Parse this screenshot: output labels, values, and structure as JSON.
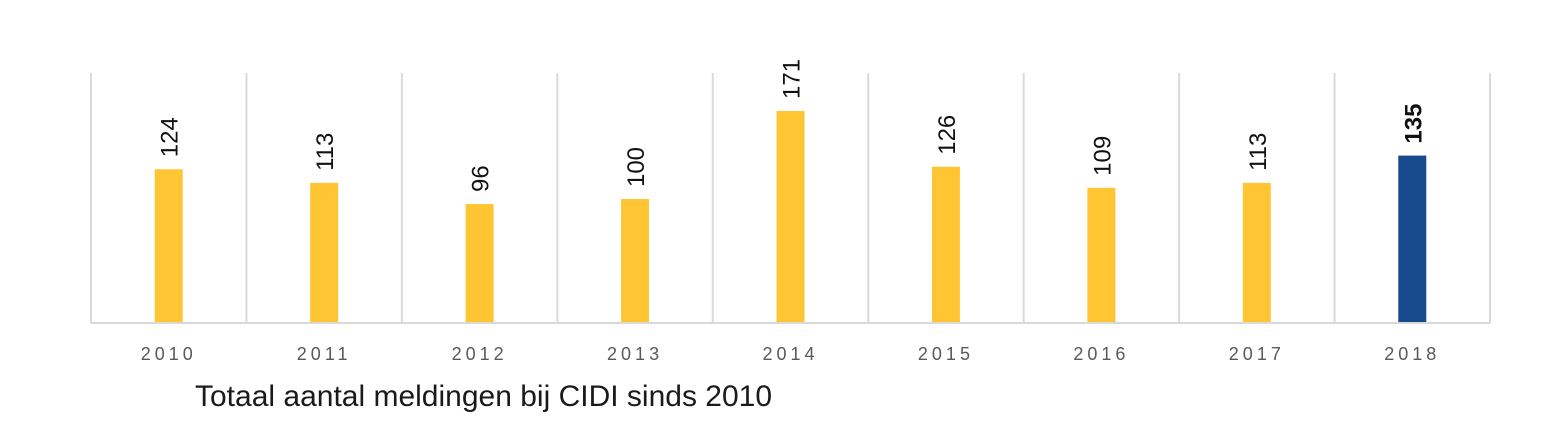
{
  "chart_data": {
    "type": "bar",
    "categories": [
      "2010",
      "2011",
      "2012",
      "2013",
      "2014",
      "2015",
      "2016",
      "2017",
      "2018"
    ],
    "values": [
      124,
      113,
      96,
      100,
      171,
      126,
      109,
      113,
      135
    ],
    "highlight_index": 8,
    "bar_color": "#FFC533",
    "highlight_color": "#174A8C",
    "gridline_color": "#D9D9D9",
    "ylim": [
      0,
      200
    ],
    "grid": "vertical separators",
    "caption": "Totaal aantal meldingen bij CIDI sinds 2010"
  }
}
